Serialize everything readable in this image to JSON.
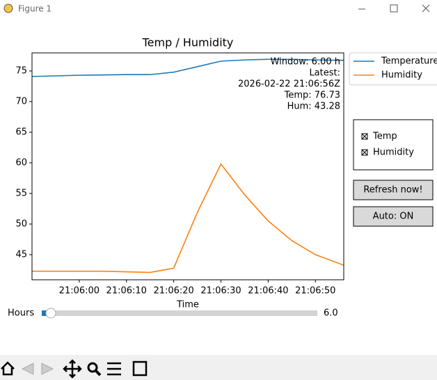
{
  "window": {
    "title": "Figure 1"
  },
  "chart_data": {
    "type": "line",
    "title": "Temp / Humidity",
    "x_label": "Time",
    "x": [
      "21:05:50",
      "21:05:55",
      "21:06:00",
      "21:06:05",
      "21:06:10",
      "21:06:15",
      "21:06:20",
      "21:06:25",
      "21:06:30",
      "21:06:35",
      "21:06:40",
      "21:06:45",
      "21:06:50",
      "21:06:56"
    ],
    "xlim": [
      "21:05:50",
      "21:06:56"
    ],
    "xticks": [
      "21:06:00",
      "21:06:10",
      "21:06:20",
      "21:06:30",
      "21:06:40",
      "21:06:50"
    ],
    "ylim": [
      40.9,
      77.95
    ],
    "yticks": [
      45,
      50,
      55,
      60,
      65,
      70,
      75
    ],
    "series": [
      {
        "name": "Temperature",
        "color": "#1f77b4",
        "values": [
          74.1,
          74.2,
          74.3,
          74.35,
          74.4,
          74.4,
          74.8,
          75.7,
          76.6,
          76.8,
          76.9,
          76.9,
          76.8,
          76.73
        ]
      },
      {
        "name": "Humidity",
        "color": "#ff7f0e",
        "values": [
          42.3,
          42.3,
          42.3,
          42.3,
          42.2,
          42.1,
          42.8,
          51.9,
          59.8,
          54.8,
          50.5,
          47.3,
          45.0,
          43.28
        ]
      }
    ],
    "legend": "outside upper right",
    "annotation": [
      "Window: 6.00 h",
      "Latest:",
      "2026-02-22 21:06:56Z",
      "Temp: 76.73",
      "Hum:  43.28"
    ]
  },
  "controls": {
    "checkboxes": [
      "Temp",
      "Humidity"
    ],
    "buttons": [
      "Refresh now!",
      "Auto: ON"
    ],
    "slider": {
      "label": "Hours",
      "value_label": "6.0"
    }
  }
}
